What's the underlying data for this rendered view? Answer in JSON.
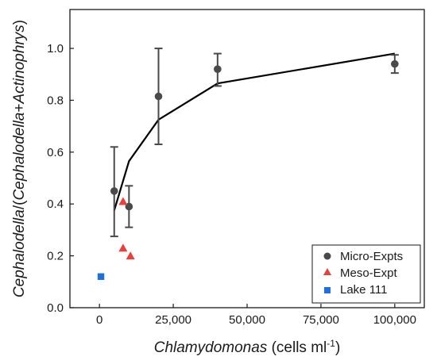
{
  "chart_data": {
    "type": "scatter",
    "xlabel": {
      "italic": "Chlamydomonas",
      "rest": " (cells ml",
      "sup": "-1",
      "close": ")"
    },
    "ylabel": {
      "p1": "Cephalodella",
      "p2": "/(",
      "p3": "Cephalodella",
      "p4": "+",
      "p5": "Actinophrys",
      "p6": ")"
    },
    "xlim": [
      -10000,
      110000
    ],
    "ylim": [
      0,
      1.15
    ],
    "xticks": [
      0,
      25000,
      50000,
      75000,
      100000
    ],
    "xtick_labels": [
      "0",
      "25,000",
      "50,000",
      "75,000",
      "100,000"
    ],
    "yticks": [
      0,
      0.2,
      0.4,
      0.6,
      0.8,
      1.0
    ],
    "ytick_labels": [
      "0.0",
      "0.2",
      "0.4",
      "0.6",
      "0.8",
      "1.0"
    ],
    "grid": false,
    "legend_position": "bottom-right",
    "series": [
      {
        "name": "Micro-Expts",
        "marker": "circle",
        "color": "#4a4a4a",
        "points": [
          {
            "x": 5000,
            "y": 0.45,
            "lo": 0.275,
            "hi": 0.62
          },
          {
            "x": 10000,
            "y": 0.39,
            "lo": 0.31,
            "hi": 0.47
          },
          {
            "x": 20000,
            "y": 0.815,
            "lo": 0.63,
            "hi": 1.0
          },
          {
            "x": 40000,
            "y": 0.92,
            "lo": 0.855,
            "hi": 0.98
          },
          {
            "x": 100000,
            "y": 0.94,
            "lo": 0.905,
            "hi": 0.975
          }
        ]
      },
      {
        "name": "Meso-Expt",
        "marker": "triangle",
        "color": "#e8413c",
        "points": [
          {
            "x": 8000,
            "y": 0.41
          },
          {
            "x": 8000,
            "y": 0.23
          },
          {
            "x": 10500,
            "y": 0.2
          }
        ]
      },
      {
        "name": "Lake 111",
        "marker": "square",
        "color": "#1f6fe0",
        "points": [
          {
            "x": 500,
            "y": 0.12
          }
        ]
      }
    ],
    "fit_line": {
      "color": "#000000",
      "points": [
        {
          "x": 5000,
          "y": 0.375
        },
        {
          "x": 10000,
          "y": 0.565
        },
        {
          "x": 20000,
          "y": 0.725
        },
        {
          "x": 40000,
          "y": 0.865
        },
        {
          "x": 100000,
          "y": 0.98
        }
      ]
    }
  }
}
